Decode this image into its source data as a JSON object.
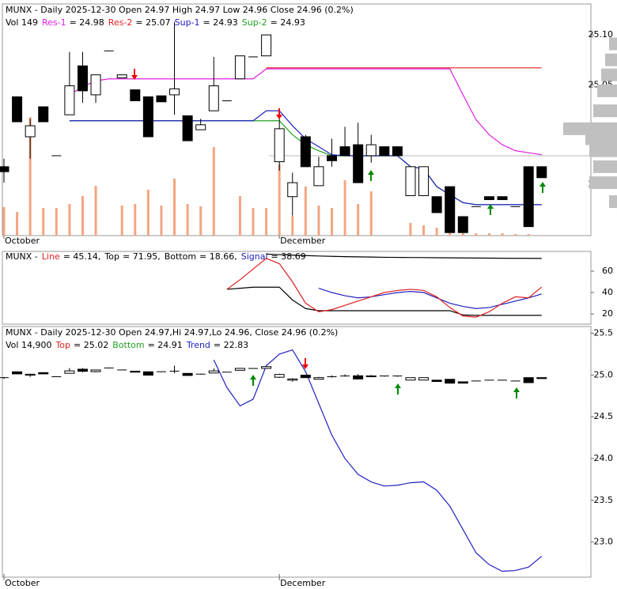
{
  "chart_data": [
    {
      "type": "candlestick",
      "header": "MUNX - Daily 2025-12-30 Open 24.97   High 24.97   Low 24.96   Close 24.96 (0.2%)",
      "volume_label": "Vol 149",
      "categories": [
        "October",
        null,
        null,
        null,
        null,
        null,
        null,
        null,
        null,
        null,
        null,
        null,
        null,
        null,
        null,
        null,
        null,
        null,
        null,
        null,
        null,
        "December",
        null,
        null,
        null,
        null,
        null,
        null,
        null,
        null,
        null,
        null,
        null,
        null,
        null,
        null,
        null,
        null,
        null,
        null,
        null,
        null
      ],
      "open": [
        24.968,
        25.038,
        24.998,
        25.028,
        24.979,
        25.02,
        25.069,
        25.04,
        25.084,
        25.057,
        25.045,
        25.038,
        25.039,
        25.04,
        25.019,
        25.005,
        25.024,
        25.034,
        25.056,
        25.078,
        25.079,
        24.973,
        24.938,
        24.998,
        24.949,
        24.979,
        24.988,
        24.99,
        24.979,
        24.988,
        24.988,
        24.939,
        24.939,
        24.938,
        24.948,
        24.918,
        24.928,
        24.938,
        24.938,
        24.928,
        24.968,
        24.968
      ],
      "high": [
        24.976,
        25.038,
        25.016,
        25.028,
        24.979,
        25.083,
        25.083,
        25.06,
        25.084,
        25.06,
        25.045,
        25.038,
        25.039,
        25.113,
        25.019,
        25.016,
        25.078,
        25.034,
        25.079,
        25.078,
        25.1,
        25.016,
        24.962,
        25.0,
        24.978,
        24.996,
        25.008,
        25.012,
        25.0,
        24.988,
        24.988,
        24.968,
        24.968,
        24.938,
        24.948,
        24.918,
        24.928,
        24.938,
        24.938,
        24.928,
        24.968,
        24.968
      ],
      "low": [
        24.952,
        25.013,
        24.976,
        25.013,
        24.979,
        25.02,
        25.032,
        25.032,
        25.084,
        25.057,
        25.034,
        24.998,
        25.033,
        25.02,
        24.994,
        25.005,
        25.024,
        25.034,
        25.056,
        25.078,
        25.079,
        24.964,
        24.919,
        24.968,
        24.949,
        24.968,
        24.979,
        24.952,
        24.972,
        24.979,
        24.979,
        24.939,
        24.939,
        24.922,
        24.902,
        24.902,
        24.928,
        24.935,
        24.935,
        24.928,
        24.908,
        24.957
      ],
      "close": [
        24.963,
        25.013,
        25.009,
        25.013,
        24.979,
        25.049,
        25.044,
        25.06,
        25.084,
        25.06,
        25.034,
        24.998,
        25.033,
        25.046,
        24.994,
        25.01,
        25.049,
        25.034,
        25.079,
        25.078,
        25.1,
        25.006,
        24.952,
        24.968,
        24.968,
        24.974,
        24.979,
        24.952,
        24.99,
        24.979,
        24.979,
        24.968,
        24.968,
        24.922,
        24.902,
        24.902,
        24.928,
        24.935,
        24.935,
        24.928,
        24.908,
        24.957
      ],
      "volume": [
        7200,
        6000,
        30000,
        7000,
        7000,
        8000,
        10000,
        12600,
        0,
        7600,
        8000,
        11600,
        7600,
        14400,
        8000,
        7400,
        22400,
        0,
        10000,
        7000,
        7000,
        18000,
        5000,
        12400,
        7600,
        7000,
        14000,
        8000,
        11200,
        0,
        0,
        3200,
        2600,
        2000,
        800,
        800,
        600,
        600,
        600,
        400,
        400,
        149
      ],
      "volume_color": "#f4a582",
      "series": [
        {
          "name": "Res-1",
          "legend": "= 24.98",
          "color": "#e020e0",
          "values": [
            null,
            null,
            null,
            null,
            null,
            25.04,
            25.048,
            25.054,
            25.056,
            25.056,
            25.056,
            25.056,
            25.056,
            25.056,
            25.056,
            25.056,
            25.056,
            25.056,
            25.056,
            25.056,
            25.066,
            25.066,
            25.066,
            25.066,
            25.066,
            25.066,
            25.066,
            25.066,
            25.066,
            25.066,
            25.066,
            25.066,
            25.066,
            25.066,
            25.066,
            25.04,
            25.015,
            25.0,
            24.99,
            24.984,
            24.982,
            24.98
          ]
        },
        {
          "name": "Res-2",
          "legend": "= 25.07",
          "color": "#e02020",
          "values": [
            null,
            null,
            null,
            null,
            null,
            null,
            null,
            null,
            null,
            null,
            null,
            null,
            null,
            null,
            null,
            null,
            null,
            null,
            null,
            null,
            25.067,
            25.067,
            25.067,
            25.067,
            25.067,
            25.067,
            25.067,
            25.067,
            25.067,
            25.067,
            25.067,
            25.067,
            25.067,
            25.067,
            25.067,
            25.067,
            25.067,
            25.067,
            25.067,
            25.067,
            25.067,
            25.067
          ]
        },
        {
          "name": "Sup-1",
          "legend": "= 24.93",
          "color": "#2020c0",
          "values": [
            null,
            null,
            null,
            null,
            null,
            25.014,
            25.014,
            25.014,
            25.014,
            25.014,
            25.014,
            25.014,
            25.014,
            25.014,
            25.014,
            25.014,
            25.014,
            25.014,
            25.014,
            25.014,
            25.024,
            25.024,
            25.009,
            24.996,
            24.988,
            24.98,
            24.979,
            24.979,
            24.979,
            24.979,
            24.979,
            24.968,
            24.966,
            24.948,
            24.94,
            24.932,
            24.93,
            24.93,
            24.93,
            24.93,
            24.93,
            24.93
          ]
        },
        {
          "name": "Sup-2",
          "legend": "= 24.93",
          "color": "#20a020",
          "values": [
            null,
            null,
            null,
            null,
            null,
            25.014,
            25.014,
            25.014,
            25.014,
            25.014,
            25.014,
            25.014,
            25.014,
            25.014,
            25.014,
            25.014,
            25.014,
            25.014,
            25.014,
            25.014,
            25.014,
            25.014,
            25.0,
            24.99,
            24.984,
            24.979,
            24.979,
            24.979,
            24.979,
            24.979,
            24.979,
            24.968,
            24.966,
            24.948,
            24.94,
            24.932,
            24.93,
            24.93,
            24.93,
            24.93,
            24.93,
            24.93
          ]
        }
      ],
      "profile": {
        "levels": [
          25.091,
          25.075,
          25.06,
          25.044,
          25.024,
          25.006,
          24.996,
          24.984,
          24.968,
          24.952,
          24.933
        ],
        "values": [
          10,
          15,
          20,
          25,
          30,
          68,
          40,
          35,
          30,
          35,
          10
        ],
        "color": "#c0c0c0"
      },
      "ylim": [
        24.899,
        25.131
      ],
      "yticks": [
        24.95,
        {
          "value": 25.0,
          "label": "25.00"
        },
        25.05,
        {
          "value": 25.1,
          "label": "25.10"
        }
      ]
    },
    {
      "type": "line",
      "header": "MUNX -",
      "series": [
        {
          "name": "Line",
          "legend": "= 45.14,",
          "color": "#e02020",
          "values": [
            null,
            null,
            null,
            null,
            null,
            null,
            null,
            null,
            null,
            null,
            null,
            null,
            null,
            null,
            null,
            null,
            null,
            43,
            52,
            62,
            72,
            67,
            50,
            30,
            22,
            24,
            28,
            32,
            36,
            40,
            42,
            43,
            42,
            36,
            26,
            18,
            17,
            22,
            30,
            36,
            35,
            45.14
          ]
        },
        {
          "name": "Top",
          "legend": "= 71.95,",
          "color": "#000000",
          "values": [
            null,
            null,
            null,
            null,
            null,
            null,
            null,
            null,
            null,
            null,
            null,
            null,
            null,
            null,
            null,
            null,
            null,
            null,
            null,
            null,
            76,
            75.5,
            75,
            74.6,
            74.2,
            73.9,
            73.6,
            73.4,
            73.2,
            73,
            72.9,
            72.8,
            72.7,
            72.6,
            72.5,
            72.4,
            72.3,
            72.2,
            72.1,
            72.05,
            72,
            71.95
          ]
        },
        {
          "name": "Bottom",
          "legend": "= 18.66,",
          "color": "#000000",
          "values": [
            null,
            null,
            null,
            null,
            null,
            null,
            null,
            null,
            null,
            null,
            null,
            null,
            null,
            null,
            null,
            null,
            null,
            43,
            44,
            45,
            45,
            45,
            33,
            25,
            23,
            23,
            23,
            23,
            23,
            23,
            23,
            23,
            23,
            23,
            23,
            19,
            18.66,
            18.66,
            18.66,
            18.66,
            18.66,
            18.66
          ]
        },
        {
          "name": "Signal",
          "legend": "= 38.69",
          "color": "#2020c0",
          "values": [
            null,
            null,
            null,
            null,
            null,
            null,
            null,
            null,
            null,
            null,
            null,
            null,
            null,
            null,
            null,
            null,
            null,
            null,
            null,
            null,
            null,
            null,
            null,
            null,
            44,
            40,
            37,
            35,
            36,
            38,
            40,
            41,
            40,
            35,
            30,
            27,
            25,
            26,
            29,
            32,
            35,
            38.69
          ]
        }
      ],
      "ylim": [
        10.4,
        78.5
      ],
      "yticks": [
        20,
        40,
        60
      ]
    },
    {
      "type": "candlestick",
      "header": "MUNX - Daily 2025-12-30 Open 24.97,Hi 24.97,Lo 24.96, Close 24.96 (0.2%)",
      "volume_label": "Vol 14,900",
      "categories": [
        "October",
        null,
        null,
        null,
        null,
        null,
        null,
        null,
        null,
        null,
        null,
        null,
        null,
        null,
        null,
        null,
        null,
        null,
        null,
        null,
        null,
        "December",
        null,
        null,
        null,
        null,
        null,
        null,
        null,
        null,
        null,
        null,
        null,
        null,
        null,
        null,
        null,
        null,
        null,
        null,
        null,
        null
      ],
      "series": [
        {
          "name": "Top",
          "legend": "= 25.02",
          "color": "#e02020"
        },
        {
          "name": "Bottom",
          "legend": "= 24.91",
          "color": "#20a020"
        },
        {
          "name": "Trend",
          "legend": "= 22.83",
          "color": "#2020c0",
          "values": [
            null,
            null,
            null,
            null,
            null,
            null,
            null,
            null,
            null,
            null,
            null,
            null,
            null,
            null,
            null,
            null,
            25.18,
            24.85,
            24.63,
            24.71,
            25.11,
            25.25,
            25.3,
            25.04,
            24.66,
            24.28,
            24.0,
            23.81,
            23.72,
            23.67,
            23.68,
            23.71,
            23.72,
            23.62,
            23.43,
            23.15,
            22.87,
            22.73,
            22.65,
            22.66,
            22.7,
            22.83
          ]
        }
      ],
      "ylim": [
        22.58,
        25.58
      ],
      "yticks": [
        {
          "value": 23,
          "label": "23.0"
        },
        23.5,
        {
          "value": 24,
          "label": "24.0"
        },
        24.5,
        {
          "value": 25,
          "label": "25.0"
        },
        25.5
      ]
    }
  ]
}
